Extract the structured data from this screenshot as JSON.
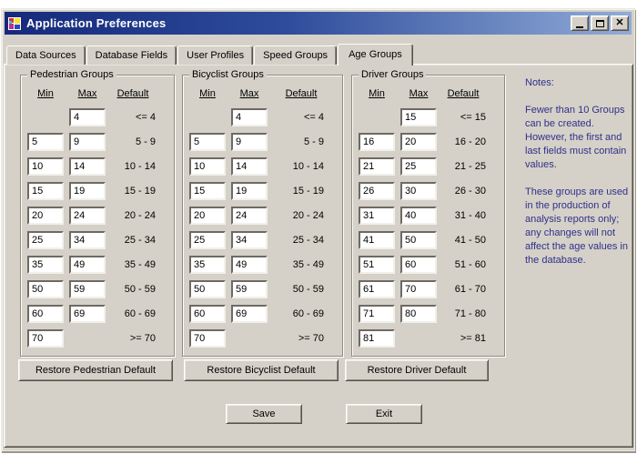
{
  "window": {
    "title": "Application Preferences"
  },
  "icons": {
    "app": "application-icon",
    "minimize": "minimize-icon",
    "maximize": "maximize-icon",
    "close": "close-icon"
  },
  "tabs": [
    {
      "label": "Data Sources",
      "active": false
    },
    {
      "label": "Database Fields",
      "active": false
    },
    {
      "label": "User Profiles",
      "active": false
    },
    {
      "label": "Speed Groups",
      "active": false
    },
    {
      "label": "Age Groups",
      "active": true
    }
  ],
  "columns": {
    "min": "Min",
    "max": "Max",
    "default": "Default"
  },
  "groups": [
    {
      "title": "Pedestrian Groups",
      "restore_label": "Restore Pedestrian Default",
      "rows": [
        {
          "min": null,
          "max": "4",
          "default": "<= 4"
        },
        {
          "min": "5",
          "max": "9",
          "default": "5 - 9"
        },
        {
          "min": "10",
          "max": "14",
          "default": "10 - 14"
        },
        {
          "min": "15",
          "max": "19",
          "default": "15 - 19"
        },
        {
          "min": "20",
          "max": "24",
          "default": "20 - 24"
        },
        {
          "min": "25",
          "max": "34",
          "default": "25 - 34"
        },
        {
          "min": "35",
          "max": "49",
          "default": "35 - 49"
        },
        {
          "min": "50",
          "max": "59",
          "default": "50 - 59"
        },
        {
          "min": "60",
          "max": "69",
          "default": "60 - 69"
        },
        {
          "min": "70",
          "max": null,
          "default": ">= 70"
        }
      ]
    },
    {
      "title": "Bicyclist Groups",
      "restore_label": "Restore Bicyclist Default",
      "rows": [
        {
          "min": null,
          "max": "4",
          "default": "<= 4"
        },
        {
          "min": "5",
          "max": "9",
          "default": "5 - 9"
        },
        {
          "min": "10",
          "max": "14",
          "default": "10 - 14"
        },
        {
          "min": "15",
          "max": "19",
          "default": "15 - 19"
        },
        {
          "min": "20",
          "max": "24",
          "default": "20 - 24"
        },
        {
          "min": "25",
          "max": "34",
          "default": "25 - 34"
        },
        {
          "min": "35",
          "max": "49",
          "default": "35 - 49"
        },
        {
          "min": "50",
          "max": "59",
          "default": "50 - 59"
        },
        {
          "min": "60",
          "max": "69",
          "default": "60 - 69"
        },
        {
          "min": "70",
          "max": null,
          "default": ">= 70"
        }
      ]
    },
    {
      "title": "Driver Groups",
      "restore_label": "Restore Driver Default",
      "rows": [
        {
          "min": null,
          "max": "15",
          "default": "<= 15"
        },
        {
          "min": "16",
          "max": "20",
          "default": "16 - 20"
        },
        {
          "min": "21",
          "max": "25",
          "default": "21 - 25"
        },
        {
          "min": "26",
          "max": "30",
          "default": "26 - 30"
        },
        {
          "min": "31",
          "max": "40",
          "default": "31 - 40"
        },
        {
          "min": "41",
          "max": "50",
          "default": "41 - 50"
        },
        {
          "min": "51",
          "max": "60",
          "default": "51 - 60"
        },
        {
          "min": "61",
          "max": "70",
          "default": "61 - 70"
        },
        {
          "min": "71",
          "max": "80",
          "default": "71 - 80"
        },
        {
          "min": "81",
          "max": null,
          "default": ">= 81"
        }
      ]
    }
  ],
  "notes": {
    "heading": "Notes:",
    "paragraphs": [
      "Fewer than 10 Groups can be created. However, the first and last fields must contain values.",
      "These groups are used in the production of analysis reports only; any changes will not affect the age values in the database."
    ]
  },
  "footer": {
    "save_label": "Save",
    "exit_label": "Exit"
  },
  "colors": {
    "titlebar_start": "#15297c",
    "titlebar_end": "#91acd8",
    "chrome": "#d5d1c8",
    "notes_text": "#30308c"
  }
}
